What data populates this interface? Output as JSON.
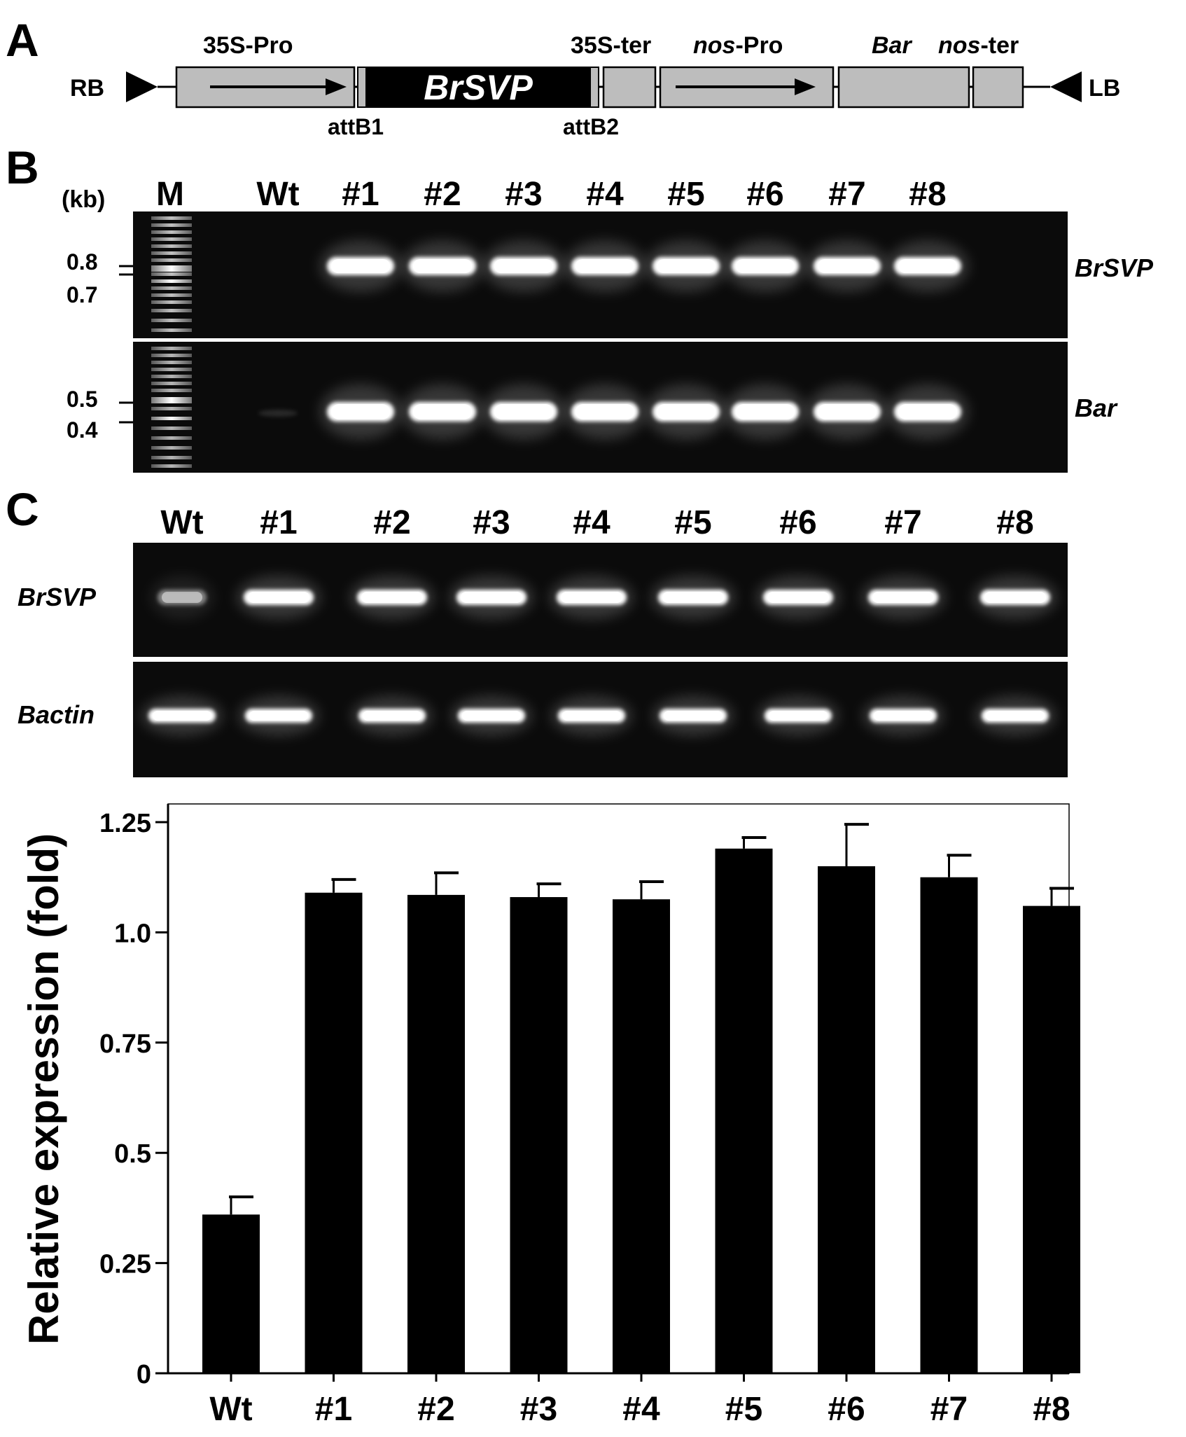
{
  "panels": {
    "a": "A",
    "b": "B",
    "c": "C"
  },
  "construct": {
    "rb": "RB",
    "lb": "LB",
    "promoter_35s": "35S-Pro",
    "gene": "BrSVP",
    "attb1": "attB1",
    "attb2": "attB2",
    "terminator_35s": "35S-ter",
    "nos_pro_italic": "nos",
    "nos_pro_suffix": "-Pro",
    "bar_gene": "Bar",
    "nos_ter_italic": "nos",
    "nos_ter_suffix": "-ter"
  },
  "gel_b": {
    "unit": "(kb)",
    "lanes": [
      "M",
      "Wt",
      "#1",
      "#2",
      "#3",
      "#4",
      "#5",
      "#6",
      "#7",
      "#8"
    ],
    "top_gene": "BrSVP",
    "bottom_gene": "Bar",
    "top_markers": [
      "0.8",
      "0.7"
    ],
    "bottom_markers": [
      "0.5",
      "0.4"
    ]
  },
  "gel_c": {
    "lanes": [
      "Wt",
      "#1",
      "#2",
      "#3",
      "#4",
      "#5",
      "#6",
      "#7",
      "#8"
    ],
    "top_gene": "BrSVP",
    "bottom_gene": "Bactin"
  },
  "chart_data": {
    "type": "bar",
    "categories": [
      "Wt",
      "#1",
      "#2",
      "#3",
      "#4",
      "#5",
      "#6",
      "#7",
      "#8"
    ],
    "values": [
      0.36,
      1.09,
      1.085,
      1.08,
      1.075,
      1.19,
      1.15,
      1.125,
      1.06
    ],
    "errors": [
      0.04,
      0.03,
      0.05,
      0.03,
      0.04,
      0.025,
      0.095,
      0.05,
      0.04
    ],
    "ylabel": "Relative expression (fold)",
    "xlabel": "",
    "ylim": [
      0,
      1.3
    ],
    "yticks": [
      0,
      0.25,
      0.5,
      0.75,
      1.0,
      1.25
    ],
    "ytick_labels": [
      "0",
      "0.25",
      "0.5",
      "0.75",
      "1.0",
      "1.25"
    ],
    "bar_color": "#000000",
    "grid": false
  }
}
